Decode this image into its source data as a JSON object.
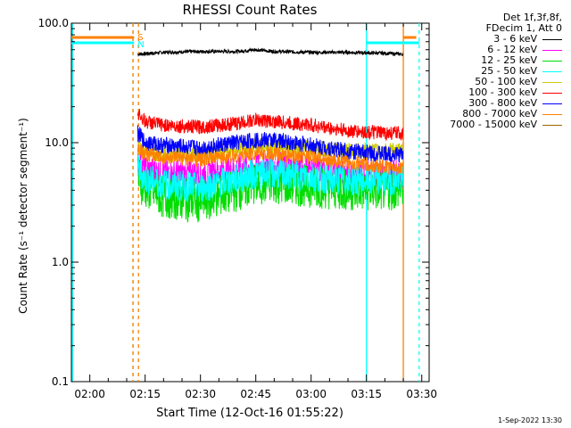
{
  "chart_data": {
    "type": "line",
    "title": "RHESSI Count Rates",
    "xlabel": "Start Time (12-Oct-16 01:55:22)",
    "ylabel": "Count Rate (s⁻¹ detector segment⁻¹)",
    "y_scale": "log",
    "ylim": [
      0.1,
      100
    ],
    "y_ticks": [
      "0.1",
      "1.0",
      "10.0",
      "100.0"
    ],
    "xlim": [
      "01:55",
      "03:32"
    ],
    "x_ticks": [
      "02:00",
      "02:15",
      "02:30",
      "02:45",
      "03:00",
      "03:15",
      "03:30"
    ],
    "legend": {
      "header": [
        "Det 1f,3f,8f,",
        "FDecim 1, Att 0"
      ],
      "placement": "right"
    },
    "series": [
      {
        "name": "3 - 6 keV",
        "color": "#000000",
        "x": [
          "02:13",
          "02:20",
          "02:30",
          "02:40",
          "02:45",
          "02:50",
          "03:00",
          "03:10",
          "03:20",
          "03:25"
        ],
        "values": [
          55,
          57,
          58,
          58,
          60,
          58,
          57,
          57,
          56,
          55
        ]
      },
      {
        "name": "6 - 12 keV",
        "color": "#ff00ff",
        "x": [
          "02:13",
          "02:15",
          "02:20",
          "02:30",
          "02:40",
          "02:45",
          "02:50",
          "03:00",
          "03:10",
          "03:20",
          "03:25"
        ],
        "values": [
          7,
          6,
          5.5,
          5.5,
          6,
          6.5,
          6.5,
          6,
          5.5,
          5.5,
          5.5
        ]
      },
      {
        "name": "12 - 25 keV",
        "color": "#00dd00",
        "x": [
          "02:13",
          "02:15",
          "02:20",
          "02:30",
          "02:40",
          "02:45",
          "02:50",
          "03:00",
          "03:10",
          "03:20",
          "03:25"
        ],
        "values": [
          5,
          4.2,
          3.5,
          3.2,
          4,
          4.5,
          4.6,
          4.3,
          4.0,
          4.0,
          4.2
        ]
      },
      {
        "name": "25 - 50 keV",
        "color": "#00ffff",
        "x": [
          "02:13",
          "02:15",
          "02:20",
          "02:30",
          "02:40",
          "02:45",
          "02:50",
          "03:00",
          "03:10",
          "03:20",
          "03:25"
        ],
        "values": [
          6,
          5,
          4.5,
          4.2,
          5,
          5.5,
          5.5,
          5.2,
          4.8,
          4.8,
          5
        ]
      },
      {
        "name": "50 - 100 keV",
        "color": "#cccc00",
        "x": [
          "02:13",
          "02:15",
          "02:20",
          "02:30",
          "02:40",
          "02:45",
          "02:50",
          "03:00",
          "03:10",
          "03:20",
          "03:25"
        ],
        "values": [
          9,
          8.5,
          8,
          8,
          9,
          9.5,
          9.5,
          9,
          8.5,
          8.5,
          8.5
        ]
      },
      {
        "name": "100 - 300 keV",
        "color": "#ff0000",
        "x": [
          "02:13",
          "02:15",
          "02:20",
          "02:30",
          "02:40",
          "02:45",
          "02:50",
          "03:00",
          "03:10",
          "03:20",
          "03:25"
        ],
        "values": [
          18,
          15,
          14,
          13.5,
          14.5,
          15.5,
          15,
          14,
          12.5,
          12,
          12
        ]
      },
      {
        "name": "300 - 800 keV",
        "color": "#0000ff",
        "x": [
          "02:13",
          "02:15",
          "02:20",
          "02:30",
          "02:40",
          "02:45",
          "02:50",
          "03:00",
          "03:10",
          "03:20",
          "03:25"
        ],
        "values": [
          12,
          10,
          9.5,
          9,
          10,
          10.5,
          10.5,
          9.5,
          8.5,
          8,
          8
        ]
      },
      {
        "name": "800 - 7000 keV",
        "color": "#ff8000",
        "x": [
          "02:13",
          "02:15",
          "02:20",
          "02:30",
          "02:40",
          "02:45",
          "02:50",
          "03:00",
          "03:10",
          "03:20",
          "03:25"
        ],
        "values": [
          9,
          8,
          7.5,
          7.2,
          7.8,
          8.2,
          8,
          7.5,
          6.8,
          6.3,
          6
        ]
      },
      {
        "name": "7000 - 15000 keV",
        "color": "#996600",
        "x": [],
        "values": []
      }
    ],
    "markers": [
      {
        "label": "S",
        "color": "#ff8000"
      },
      {
        "label": "N",
        "color": "#00ffff"
      }
    ]
  },
  "timestamp": "1-Sep-2022 13:30"
}
